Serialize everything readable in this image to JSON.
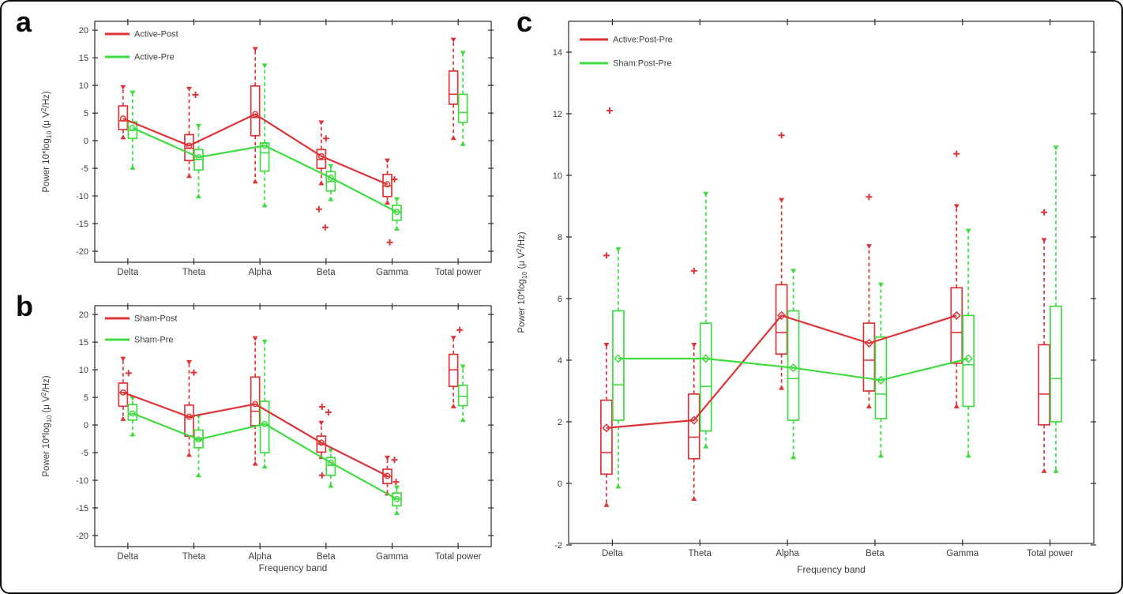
{
  "figure": {
    "background": "#ffffff",
    "frame_color": "#0b0b0b",
    "axis_color": "#2a2a2a",
    "text_color": "#3d3d3d",
    "red": "#de3438",
    "green": "#3edc3e"
  },
  "chart_data": [
    {
      "panel": "a",
      "type": "boxplot",
      "categories": [
        "Delta",
        "Theta",
        "Alpha",
        "Beta",
        "Gamma",
        "Total power"
      ],
      "xlabel": "",
      "ylabel": "Power 10*log₁₀ (μ V²/Hz)",
      "ylabel_rich": {
        "pre": "Power 10*log",
        "sub": "10",
        "mid": " (μ V",
        "sup": "2",
        "post": "/Hz)"
      },
      "ylim": [
        -22.0,
        21.6
      ],
      "yticks": [
        20,
        15,
        10,
        5,
        0,
        -5,
        -10,
        -15,
        -20
      ],
      "grid": false,
      "legend_position": "top-left-inside",
      "mean_line_span": [
        "Delta",
        "Gamma"
      ],
      "series": [
        {
          "name": "Active-Post",
          "color": "#de3438",
          "marker": "circle",
          "boxes": [
            {
              "category": "Delta",
              "whislo": 0.6,
              "q1": 2.0,
              "med": 3.6,
              "q3": 6.3,
              "whishi": 9.7,
              "mean": 4.0,
              "outliers": []
            },
            {
              "category": "Theta",
              "whislo": -6.4,
              "q1": -3.6,
              "med": -1.4,
              "q3": 1.1,
              "whishi": 9.4,
              "mean": -0.9,
              "outliers": [
                {
                  "v": 8.3,
                  "dx": 8
                }
              ]
            },
            {
              "category": "Alpha",
              "whislo": -7.4,
              "q1": 0.9,
              "med": 4.2,
              "q3": 9.9,
              "whishi": 16.6,
              "mean": 4.8,
              "outliers": []
            },
            {
              "category": "Beta",
              "whislo": -7.7,
              "q1": -5.0,
              "med": -3.4,
              "q3": -1.6,
              "whishi": 3.3,
              "mean": -2.8,
              "outliers": [
                {
                  "v": 0.4,
                  "dx": 6
                },
                {
                  "v": -12.4,
                  "dx": -3
                },
                {
                  "v": -15.7,
                  "dx": 5
                }
              ]
            },
            {
              "category": "Gamma",
              "whislo": -11.2,
              "q1": -10.1,
              "med": -8.2,
              "q3": -6.1,
              "whishi": -3.6,
              "mean": -7.9,
              "outliers": [
                {
                  "v": -7.0,
                  "dx": 9
                },
                {
                  "v": -18.4,
                  "dx": 3
                }
              ]
            },
            {
              "category": "Total power",
              "whislo": 0.5,
              "q1": 6.6,
              "med": 8.4,
              "q3": 12.6,
              "whishi": 18.3,
              "mean": null,
              "outliers": []
            }
          ]
        },
        {
          "name": "Active-Pre",
          "color": "#3edc3e",
          "marker": "circle",
          "boxes": [
            {
              "category": "Delta",
              "whislo": -4.9,
              "q1": 0.4,
              "med": 1.9,
              "q3": 3.4,
              "whishi": 8.7,
              "mean": 2.3,
              "outliers": []
            },
            {
              "category": "Theta",
              "whislo": -10.1,
              "q1": -5.3,
              "med": -3.4,
              "q3": -1.6,
              "whishi": 2.7,
              "mean": -3.0,
              "outliers": []
            },
            {
              "category": "Alpha",
              "whislo": -11.7,
              "q1": -5.5,
              "med": -2.2,
              "q3": -0.4,
              "whishi": 13.6,
              "mean": -0.9,
              "outliers": []
            },
            {
              "category": "Beta",
              "whislo": -10.6,
              "q1": -9.1,
              "med": -7.4,
              "q3": -5.6,
              "whishi": -4.6,
              "mean": -6.7,
              "outliers": []
            },
            {
              "category": "Gamma",
              "whislo": -15.9,
              "q1": -14.4,
              "med": -12.9,
              "q3": -11.7,
              "whishi": -10.6,
              "mean": -12.9,
              "outliers": []
            },
            {
              "category": "Total power",
              "whislo": -0.6,
              "q1": 3.3,
              "med": 5.1,
              "q3": 8.4,
              "whishi": 15.9,
              "mean": null,
              "outliers": []
            }
          ]
        }
      ]
    },
    {
      "panel": "b",
      "type": "boxplot",
      "categories": [
        "Delta",
        "Theta",
        "Alpha",
        "Beta",
        "Gamma",
        "Total power"
      ],
      "xlabel": "Frequency band",
      "ylabel": "Power 10*log₁₀ (μ V²/Hz)",
      "ylabel_rich": {
        "pre": "Power 10*log",
        "sub": "10",
        "mid": " (μ V",
        "sup": "2",
        "post": "/Hz)"
      },
      "ylim": [
        -22.0,
        21.6
      ],
      "yticks": [
        20,
        15,
        10,
        5,
        0,
        -5,
        -10,
        -15,
        -20
      ],
      "grid": false,
      "legend_position": "top-left-inside",
      "mean_line_span": [
        "Delta",
        "Gamma"
      ],
      "series": [
        {
          "name": "Sham-Post",
          "color": "#de3438",
          "marker": "circle",
          "boxes": [
            {
              "category": "Delta",
              "whislo": 1.1,
              "q1": 3.4,
              "med": 5.9,
              "q3": 7.6,
              "whishi": 12.0,
              "mean": 5.9,
              "outliers": [
                {
                  "v": 9.4,
                  "dx": 7
                }
              ]
            },
            {
              "category": "Theta",
              "whislo": -5.4,
              "q1": -2.0,
              "med": 1.4,
              "q3": 3.6,
              "whishi": 11.4,
              "mean": 1.5,
              "outliers": [
                {
                  "v": 9.5,
                  "dx": 6
                }
              ]
            },
            {
              "category": "Alpha",
              "whislo": -7.0,
              "q1": -0.1,
              "med": 2.5,
              "q3": 8.7,
              "whishi": 15.7,
              "mean": 3.8,
              "outliers": []
            },
            {
              "category": "Beta",
              "whislo": -5.8,
              "q1": -4.9,
              "med": -3.4,
              "q3": -2.0,
              "whishi": 0.4,
              "mean": -3.2,
              "outliers": [
                {
                  "v": 3.3,
                  "dx": 1
                },
                {
                  "v": 2.3,
                  "dx": 9
                },
                {
                  "v": -9.1,
                  "dx": 1
                }
              ]
            },
            {
              "category": "Gamma",
              "whislo": -12.4,
              "q1": -10.6,
              "med": -9.3,
              "q3": -8.0,
              "whishi": -5.9,
              "mean": -9.2,
              "outliers": [
                {
                  "v": -6.3,
                  "dx": 9
                },
                {
                  "v": -10.3,
                  "dx": 11
                }
              ]
            },
            {
              "category": "Total power",
              "whislo": 3.4,
              "q1": 7.0,
              "med": 10.0,
              "q3": 12.8,
              "whishi": 15.8,
              "mean": null,
              "outliers": [
                {
                  "v": 17.2,
                  "dx": 8
                }
              ]
            }
          ]
        },
        {
          "name": "Sham-Pre",
          "color": "#3edc3e",
          "marker": "circle",
          "boxes": [
            {
              "category": "Delta",
              "whislo": -1.7,
              "q1": 0.9,
              "med": 2.0,
              "q3": 3.7,
              "whishi": 4.9,
              "mean": 2.1,
              "outliers": []
            },
            {
              "category": "Theta",
              "whislo": -9.1,
              "q1": -4.1,
              "med": -2.7,
              "q3": -0.9,
              "whishi": 1.6,
              "mean": -2.6,
              "outliers": []
            },
            {
              "category": "Alpha",
              "whislo": -7.5,
              "q1": -5.0,
              "med": 0.1,
              "q3": 4.3,
              "whishi": 15.1,
              "mean": 0.2,
              "outliers": []
            },
            {
              "category": "Beta",
              "whislo": -11.0,
              "q1": -9.1,
              "med": -7.3,
              "q3": -5.9,
              "whishi": -4.6,
              "mean": -6.8,
              "outliers": []
            },
            {
              "category": "Gamma",
              "whislo": -15.9,
              "q1": -14.6,
              "med": -13.4,
              "q3": -12.3,
              "whishi": -11.3,
              "mean": -13.4,
              "outliers": []
            },
            {
              "category": "Total power",
              "whislo": 0.9,
              "q1": 3.5,
              "med": 5.2,
              "q3": 7.2,
              "whishi": 10.6,
              "mean": null,
              "outliers": []
            }
          ]
        }
      ]
    },
    {
      "panel": "c",
      "type": "boxplot",
      "categories": [
        "Delta",
        "Theta",
        "Alpha",
        "Beta",
        "Gamma",
        "Total power"
      ],
      "xlabel": "Frequency band",
      "ylabel": "Power 10*log₁₀ (μ V²/Hz)",
      "ylabel_rich": {
        "pre": "Power 10*log",
        "sub": "10",
        "mid": " (μ V",
        "sup": "2",
        "post": "/Hz)"
      },
      "ylim": [
        -1.95,
        15.0
      ],
      "yticks": [
        14,
        12,
        10,
        8,
        6,
        4,
        2,
        0,
        -2
      ],
      "grid": false,
      "legend_position": "top-left-inside",
      "mean_line_span": [
        "Delta",
        "Gamma"
      ],
      "series": [
        {
          "name": "Active:Post-Pre",
          "color": "#de3438",
          "marker": "diamond",
          "boxes": [
            {
              "category": "Delta",
              "whislo": -0.7,
              "q1": 0.3,
              "med": 1.0,
              "q3": 2.7,
              "whishi": 4.5,
              "mean": 1.8,
              "outliers": [
                {
                  "v": 7.4,
                  "dx": 0
                },
                {
                  "v": 12.1,
                  "dx": 4
                }
              ]
            },
            {
              "category": "Theta",
              "whislo": -0.5,
              "q1": 0.8,
              "med": 1.5,
              "q3": 2.9,
              "whishi": 4.5,
              "mean": 2.05,
              "outliers": [
                {
                  "v": 6.9,
                  "dx": 0
                }
              ]
            },
            {
              "category": "Alpha",
              "whislo": 3.1,
              "q1": 4.2,
              "med": 4.9,
              "q3": 6.45,
              "whishi": 9.2,
              "mean": 5.45,
              "outliers": [
                {
                  "v": 11.3,
                  "dx": 0
                }
              ]
            },
            {
              "category": "Beta",
              "whislo": 2.5,
              "q1": 3.0,
              "med": 4.0,
              "q3": 5.2,
              "whishi": 7.7,
              "mean": 4.55,
              "outliers": [
                {
                  "v": 9.3,
                  "dx": 0
                }
              ]
            },
            {
              "category": "Gamma",
              "whislo": 2.5,
              "q1": 3.9,
              "med": 4.9,
              "q3": 6.35,
              "whishi": 9.0,
              "mean": 5.45,
              "outliers": [
                {
                  "v": 10.7,
                  "dx": 0
                }
              ]
            },
            {
              "category": "Total power",
              "whislo": 0.4,
              "q1": 1.9,
              "med": 2.9,
              "q3": 4.5,
              "whishi": 7.9,
              "mean": null,
              "outliers": [
                {
                  "v": 8.8,
                  "dx": 0
                }
              ]
            }
          ]
        },
        {
          "name": "Sham:Post-Pre",
          "color": "#3edc3e",
          "marker": "diamond",
          "boxes": [
            {
              "category": "Delta",
              "whislo": -0.1,
              "q1": 2.05,
              "med": 3.2,
              "q3": 5.6,
              "whishi": 7.6,
              "mean": 4.05,
              "outliers": []
            },
            {
              "category": "Theta",
              "whislo": 1.2,
              "q1": 1.7,
              "med": 3.15,
              "q3": 5.2,
              "whishi": 9.4,
              "mean": 4.05,
              "outliers": []
            },
            {
              "category": "Alpha",
              "whislo": 0.85,
              "q1": 2.05,
              "med": 3.4,
              "q3": 5.6,
              "whishi": 6.9,
              "mean": 3.75,
              "outliers": []
            },
            {
              "category": "Beta",
              "whislo": 0.9,
              "q1": 2.1,
              "med": 2.9,
              "q3": 4.75,
              "whishi": 6.45,
              "mean": 3.35,
              "outliers": []
            },
            {
              "category": "Gamma",
              "whislo": 0.9,
              "q1": 2.5,
              "med": 3.85,
              "q3": 5.45,
              "whishi": 8.2,
              "mean": 4.05,
              "outliers": []
            },
            {
              "category": "Total power",
              "whislo": 0.4,
              "q1": 2.0,
              "med": 3.4,
              "q3": 5.75,
              "whishi": 10.9,
              "mean": null,
              "outliers": []
            }
          ]
        }
      ]
    }
  ]
}
